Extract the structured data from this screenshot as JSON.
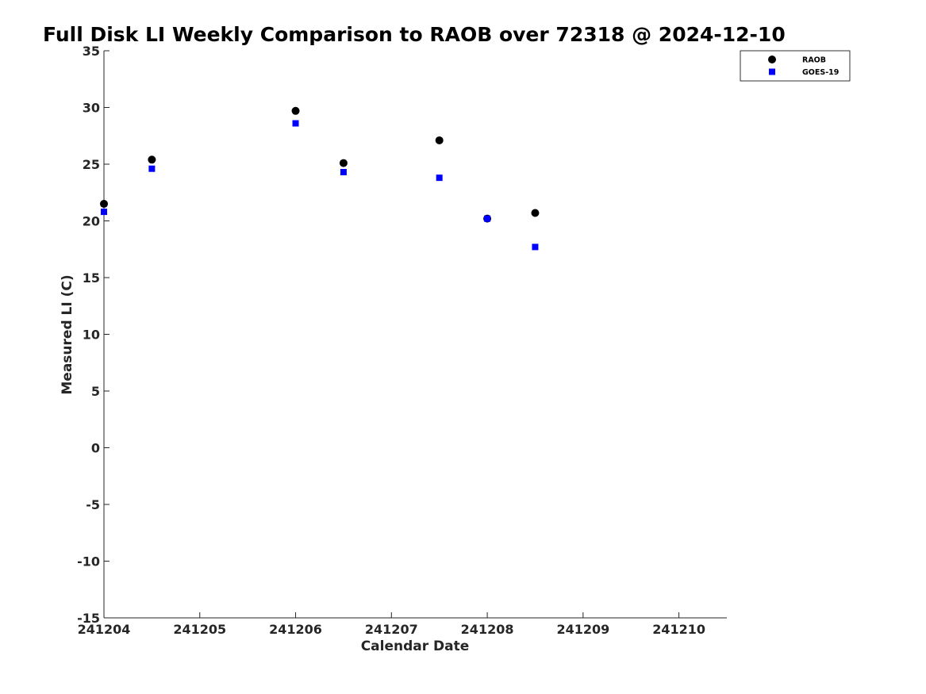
{
  "chart_data": {
    "type": "scatter",
    "title": "Full Disk LI Weekly Comparison to RAOB over 72318 @ 2024-12-10",
    "xlabel": "Calendar Date",
    "ylabel": "Measured LI (C)",
    "xlim": [
      "241204",
      "241210.5"
    ],
    "ylim": [
      -15,
      35
    ],
    "x_ticks": [
      "241204",
      "241205",
      "241206",
      "241207",
      "241208",
      "241209",
      "241210"
    ],
    "y_ticks": [
      35,
      30,
      25,
      20,
      15,
      10,
      5,
      0,
      -5,
      -10,
      -15
    ],
    "grid": false,
    "legend_position": "top-right",
    "series": [
      {
        "name": "RAOB",
        "marker": "circle",
        "color": "#000000",
        "x": [
          "2024-12-04 00:00",
          "2024-12-04 12:00",
          "2024-12-06 00:00",
          "2024-12-06 12:00",
          "2024-12-07 12:00",
          "2024-12-08 00:00",
          "2024-12-08 12:00"
        ],
        "y": [
          21.5,
          25.4,
          29.7,
          25.1,
          27.1,
          20.2,
          20.7
        ]
      },
      {
        "name": "GOES-19",
        "marker": "square",
        "color": "#0000ff",
        "x": [
          "2024-12-04 00:00",
          "2024-12-04 12:00",
          "2024-12-06 00:00",
          "2024-12-06 12:00",
          "2024-12-07 12:00",
          "2024-12-08 00:00",
          "2024-12-08 12:00"
        ],
        "y": [
          20.8,
          24.6,
          28.6,
          24.3,
          23.8,
          20.2,
          17.7
        ]
      }
    ]
  }
}
